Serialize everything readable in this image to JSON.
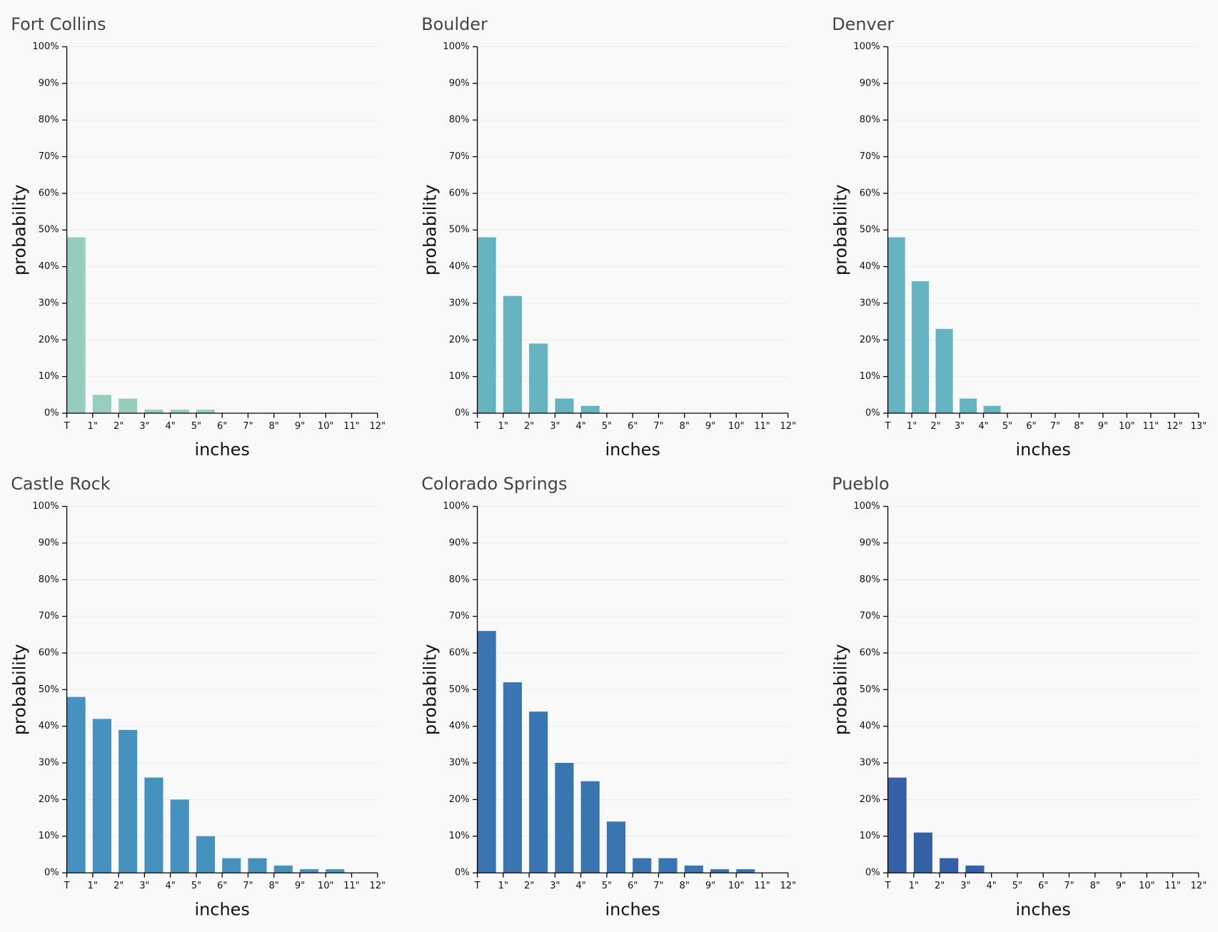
{
  "chart_data": [
    {
      "type": "histogram",
      "title": "Fort Collins",
      "x_label": "inches",
      "y_label": "probability",
      "color": "#96cdbf",
      "bins": [
        "T",
        "1\"",
        "2\"",
        "3\"",
        "4\"",
        "5\"",
        "6\"",
        "7\"",
        "8\"",
        "9\"",
        "10\"",
        "11\"",
        "12\""
      ],
      "values": [
        48,
        5,
        4,
        1,
        1,
        1,
        0,
        0,
        0,
        0,
        0,
        0
      ],
      "ylim": [
        0,
        100
      ],
      "grid": true,
      "yticks": [
        {
          "value": 0,
          "label": "0%"
        },
        {
          "value": 10,
          "label": "10%"
        },
        {
          "value": 20,
          "label": "20%"
        },
        {
          "value": 30,
          "label": "30%"
        },
        {
          "value": 40,
          "label": "40%"
        },
        {
          "value": 50,
          "label": "50%"
        },
        {
          "value": 60,
          "label": "60%"
        },
        {
          "value": 70,
          "label": "70%"
        },
        {
          "value": 80,
          "label": "80%"
        },
        {
          "value": 90,
          "label": "90%"
        },
        {
          "value": 100,
          "label": "100%"
        }
      ]
    },
    {
      "type": "histogram",
      "title": "Boulder",
      "x_label": "inches",
      "y_label": "probability",
      "color": "#66b3c2",
      "bins": [
        "T",
        "1\"",
        "2\"",
        "3\"",
        "4\"",
        "5\"",
        "6\"",
        "7\"",
        "8\"",
        "9\"",
        "10\"",
        "11\"",
        "12\""
      ],
      "values": [
        48,
        32,
        19,
        4,
        2,
        0,
        0,
        0,
        0,
        0,
        0,
        0
      ],
      "ylim": [
        0,
        100
      ],
      "grid": true,
      "yticks": [
        {
          "value": 0,
          "label": "0%"
        },
        {
          "value": 10,
          "label": "10%"
        },
        {
          "value": 20,
          "label": "20%"
        },
        {
          "value": 30,
          "label": "30%"
        },
        {
          "value": 40,
          "label": "40%"
        },
        {
          "value": 50,
          "label": "50%"
        },
        {
          "value": 60,
          "label": "60%"
        },
        {
          "value": 70,
          "label": "70%"
        },
        {
          "value": 80,
          "label": "80%"
        },
        {
          "value": 90,
          "label": "90%"
        },
        {
          "value": 100,
          "label": "100%"
        }
      ]
    },
    {
      "type": "histogram",
      "title": "Denver",
      "x_label": "inches",
      "y_label": "probability",
      "color": "#66b3c2",
      "bins": [
        "T",
        "1\"",
        "2\"",
        "3\"",
        "4\"",
        "5\"",
        "6\"",
        "7\"",
        "8\"",
        "9\"",
        "10\"",
        "11\"",
        "12\"",
        "13\""
      ],
      "values": [
        48,
        36,
        23,
        4,
        2,
        0,
        0,
        0,
        0,
        0,
        0,
        0,
        0
      ],
      "ylim": [
        0,
        100
      ],
      "grid": true,
      "yticks": [
        {
          "value": 0,
          "label": "0%"
        },
        {
          "value": 10,
          "label": "10%"
        },
        {
          "value": 20,
          "label": "20%"
        },
        {
          "value": 30,
          "label": "30%"
        },
        {
          "value": 40,
          "label": "40%"
        },
        {
          "value": 50,
          "label": "50%"
        },
        {
          "value": 60,
          "label": "60%"
        },
        {
          "value": 70,
          "label": "70%"
        },
        {
          "value": 80,
          "label": "80%"
        },
        {
          "value": 90,
          "label": "90%"
        },
        {
          "value": 100,
          "label": "100%"
        }
      ]
    },
    {
      "type": "histogram",
      "title": "Castle Rock",
      "x_label": "inches",
      "y_label": "probability",
      "color": "#4592c0",
      "bins": [
        "T",
        "1\"",
        "2\"",
        "3\"",
        "4\"",
        "5\"",
        "6\"",
        "7\"",
        "8\"",
        "9\"",
        "10\"",
        "11\"",
        "12\""
      ],
      "values": [
        48,
        42,
        39,
        26,
        20,
        10,
        4,
        4,
        2,
        1,
        1,
        0
      ],
      "ylim": [
        0,
        100
      ],
      "grid": true,
      "yticks": [
        {
          "value": 0,
          "label": "0%"
        },
        {
          "value": 10,
          "label": "10%"
        },
        {
          "value": 20,
          "label": "20%"
        },
        {
          "value": 30,
          "label": "30%"
        },
        {
          "value": 40,
          "label": "40%"
        },
        {
          "value": 50,
          "label": "50%"
        },
        {
          "value": 60,
          "label": "60%"
        },
        {
          "value": 70,
          "label": "70%"
        },
        {
          "value": 80,
          "label": "80%"
        },
        {
          "value": 90,
          "label": "90%"
        },
        {
          "value": 100,
          "label": "100%"
        }
      ]
    },
    {
      "type": "histogram",
      "title": "Colorado Springs",
      "x_label": "inches",
      "y_label": "probability",
      "color": "#3975b0",
      "bins": [
        "T",
        "1\"",
        "2\"",
        "3\"",
        "4\"",
        "5\"",
        "6\"",
        "7\"",
        "8\"",
        "9\"",
        "10\"",
        "11\"",
        "12\""
      ],
      "values": [
        66,
        52,
        44,
        30,
        25,
        14,
        4,
        4,
        2,
        1,
        1,
        0
      ],
      "ylim": [
        0,
        100
      ],
      "grid": true,
      "yticks": [
        {
          "value": 0,
          "label": "0%"
        },
        {
          "value": 10,
          "label": "10%"
        },
        {
          "value": 20,
          "label": "20%"
        },
        {
          "value": 30,
          "label": "30%"
        },
        {
          "value": 40,
          "label": "40%"
        },
        {
          "value": 50,
          "label": "50%"
        },
        {
          "value": 60,
          "label": "60%"
        },
        {
          "value": 70,
          "label": "70%"
        },
        {
          "value": 80,
          "label": "80%"
        },
        {
          "value": 90,
          "label": "90%"
        },
        {
          "value": 100,
          "label": "100%"
        }
      ]
    },
    {
      "type": "histogram",
      "title": "Pueblo",
      "x_label": "inches",
      "y_label": "probability",
      "color": "#3460a6",
      "bins": [
        "T",
        "1\"",
        "2\"",
        "3\"",
        "4\"",
        "5\"",
        "6\"",
        "7\"",
        "8\"",
        "9\"",
        "10\"",
        "11\"",
        "12\""
      ],
      "values": [
        26,
        11,
        4,
        2,
        0,
        0,
        0,
        0,
        0,
        0,
        0,
        0
      ],
      "ylim": [
        0,
        100
      ],
      "grid": true,
      "yticks": [
        {
          "value": 0,
          "label": "0%"
        },
        {
          "value": 10,
          "label": "10%"
        },
        {
          "value": 20,
          "label": "20%"
        },
        {
          "value": 30,
          "label": "30%"
        },
        {
          "value": 40,
          "label": "40%"
        },
        {
          "value": 50,
          "label": "50%"
        },
        {
          "value": 60,
          "label": "60%"
        },
        {
          "value": 70,
          "label": "70%"
        },
        {
          "value": 80,
          "label": "80%"
        },
        {
          "value": 90,
          "label": "90%"
        },
        {
          "value": 100,
          "label": "100%"
        }
      ]
    }
  ]
}
